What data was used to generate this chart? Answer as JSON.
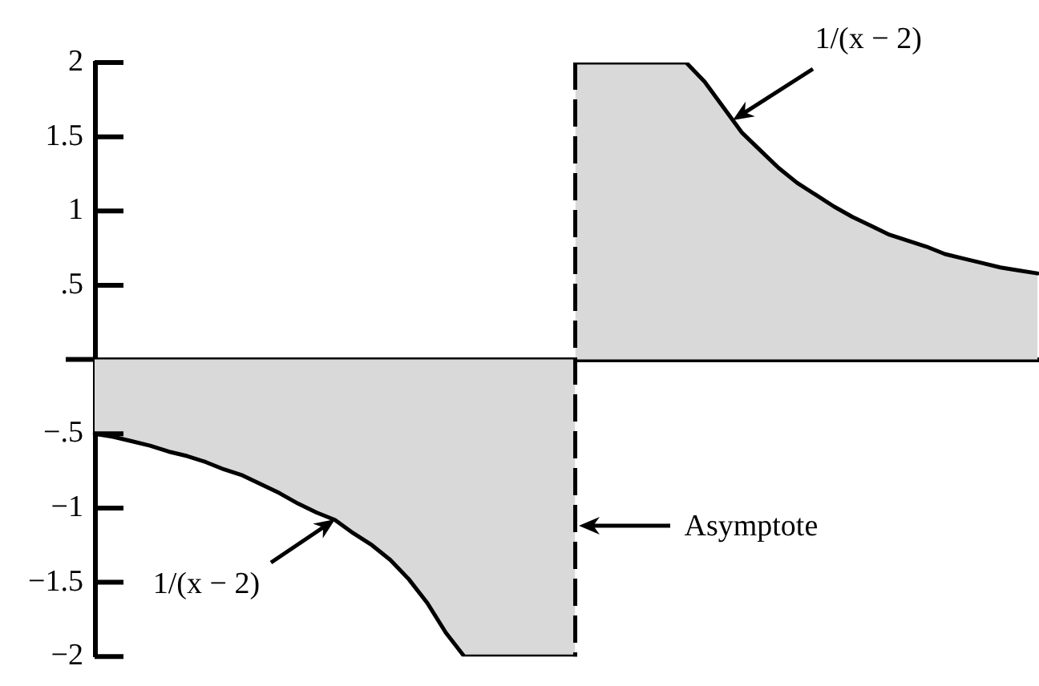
{
  "chart_data": {
    "type": "area",
    "categories": [
      null,
      null,
      null,
      null,
      null,
      null,
      null,
      null,
      null,
      null,
      null,
      null,
      null,
      null,
      null,
      null,
      null,
      null,
      null,
      null,
      null,
      null,
      null,
      null,
      null,
      null,
      null,
      null,
      null,
      null,
      null,
      null,
      null,
      null,
      null,
      null,
      null,
      null,
      null,
      null,
      null,
      null,
      null,
      null,
      null,
      null,
      null,
      null,
      null,
      null,
      null,
      null
    ],
    "series": [
      {
        "color": "#d9d9d9",
        "values": [
          -0.5,
          -0.52,
          -0.55,
          -0.58,
          -0.62,
          -0.65,
          -0.69,
          -0.74,
          -0.78,
          -0.84,
          -0.9,
          -0.97,
          -1.03,
          -1.08,
          -1.17,
          -1.25,
          -1.35,
          -1.48,
          -1.64,
          -1.84,
          -2,
          -2,
          -2,
          -2,
          -2,
          -2,
          -2,
          null,
          null,
          null,
          null,
          null,
          null,
          null,
          null,
          null,
          null,
          null,
          null,
          null,
          null,
          null,
          null,
          null,
          null,
          null,
          null,
          null,
          null,
          null,
          null,
          null
        ]
      },
      {
        "color": "#d9d9d9",
        "values": [
          null,
          null,
          null,
          null,
          null,
          null,
          null,
          null,
          null,
          null,
          null,
          null,
          null,
          null,
          null,
          null,
          null,
          null,
          null,
          null,
          null,
          null,
          null,
          null,
          null,
          null,
          2,
          2,
          2,
          2,
          2,
          2,
          2,
          1.87,
          1.7,
          1.53,
          1.41,
          1.29,
          1.19,
          1.11,
          1.03,
          0.96,
          0.9,
          0.84,
          0.8,
          0.76,
          0.71,
          0.68,
          0.65,
          0.62,
          0.6,
          0.58
        ]
      }
    ],
    "ylim": [
      -2,
      2
    ],
    "yticks": [
      {
        "value": -2,
        "label": "−2"
      },
      {
        "value": -1.5,
        "label": "−1.5"
      },
      {
        "value": -1,
        "label": "−1"
      },
      {
        "value": -0.5,
        "label": "−.5"
      },
      {
        "value": 0.5,
        "label": ".5"
      },
      1,
      1.5,
      2
    ],
    "tick_labels": "y",
    "annotations": [
      "1/(x − 2)",
      "Asymptote",
      "1/(x − 2)"
    ]
  }
}
